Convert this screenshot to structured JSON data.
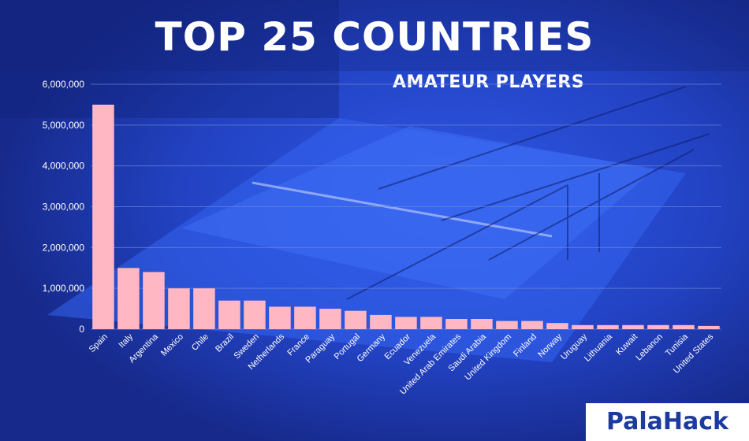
{
  "colors": {
    "background": "#1b2f9c",
    "bar": "#ffb8c3",
    "grid": "#6f86d6",
    "text": "#ffffff",
    "logo_text": "#1d3aa0"
  },
  "logo": {
    "text": "PalaHack"
  },
  "chart_data": {
    "type": "bar",
    "title": "TOP 25 COUNTRIES",
    "subtitle": "AMATEUR PLAYERS",
    "xlabel": "",
    "ylabel": "",
    "ylim": [
      0,
      6000000
    ],
    "yticks": [
      0,
      1000000,
      2000000,
      3000000,
      4000000,
      5000000,
      6000000
    ],
    "ytick_labels": [
      "0",
      "1,000,000",
      "2,000,000",
      "3,000,000",
      "4,000,000",
      "5,000,000",
      "6,000,000"
    ],
    "grid": true,
    "categories": [
      "Spain",
      "Italy",
      "Argentina",
      "Mexico",
      "Chile",
      "Brazil",
      "Sweden",
      "Netherlands",
      "France",
      "Paraguay",
      "Portugal",
      "Germany",
      "Ecuador",
      "Venezuela",
      "United Arab Emirates",
      "Saudi Arabia",
      "United Kingdom",
      "Finland",
      "Norway",
      "Uruguay",
      "Lithuania",
      "Kuwait",
      "Lebanon",
      "Tunisia",
      "United States"
    ],
    "values": [
      5500000,
      1500000,
      1400000,
      1000000,
      1000000,
      700000,
      700000,
      550000,
      550000,
      500000,
      450000,
      350000,
      300000,
      300000,
      250000,
      250000,
      200000,
      200000,
      150000,
      100000,
      100000,
      100000,
      100000,
      100000,
      80000
    ]
  }
}
